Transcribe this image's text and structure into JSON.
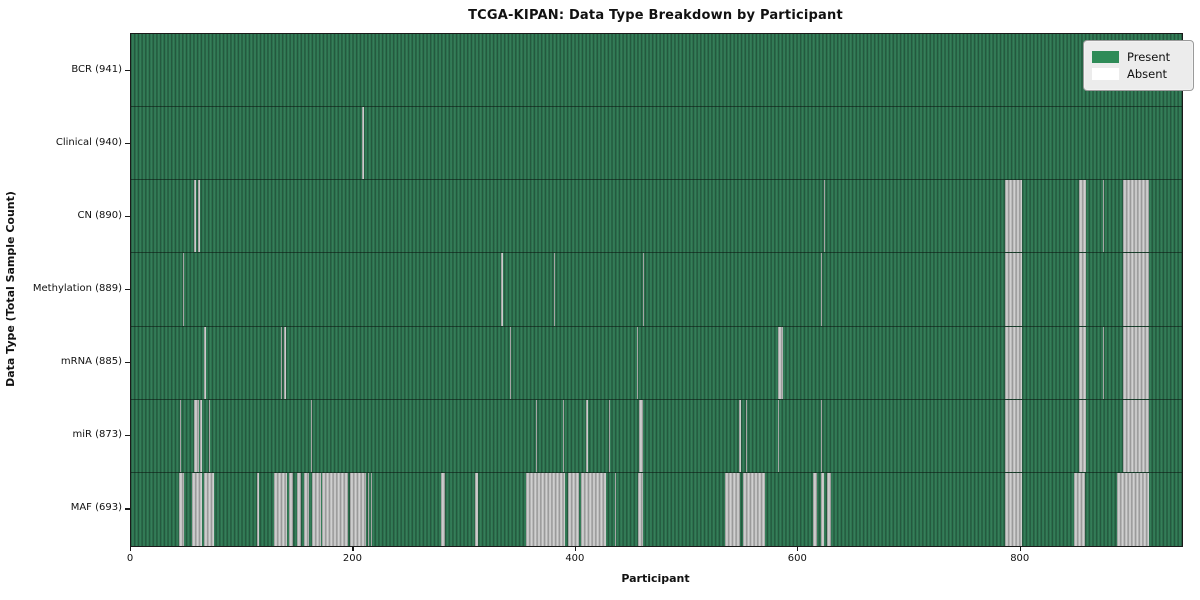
{
  "chart_data": {
    "type": "heatmap",
    "title": "TCGA-KIPAN: Data Type Breakdown by Participant",
    "xlabel": "Participant",
    "ylabel": "Data Type (Total Sample Count)",
    "x_ticks": [
      0,
      200,
      400,
      600,
      800
    ],
    "x_max": 945,
    "grid": false,
    "legend_position": "upper right",
    "colors": {
      "present_fill": "#2e8b57",
      "present_edge": "#224f38",
      "absent_fill": "#ffffff",
      "absent_edge": "#8e8e8e",
      "legend_bg": "#ececec",
      "axis": "#1a1a1a"
    },
    "legend": [
      {
        "label": "Present",
        "color": "#2e8b57"
      },
      {
        "label": "Absent",
        "color": "#ffffff"
      }
    ],
    "rows": [
      {
        "label": "BCR (941)",
        "data_type": "BCR",
        "total_samples": 941,
        "absent_ranges": []
      },
      {
        "label": "Clinical (940)",
        "data_type": "Clinical",
        "total_samples": 940,
        "absent_ranges": [
          [
            208,
            209
          ]
        ]
      },
      {
        "label": "CN (890)",
        "data_type": "CN",
        "total_samples": 890,
        "absent_ranges": [
          [
            57,
            58
          ],
          [
            60,
            62
          ],
          [
            623,
            624
          ],
          [
            786,
            801
          ],
          [
            852,
            859
          ],
          [
            874,
            875
          ],
          [
            892,
            915
          ]
        ]
      },
      {
        "label": "Methylation (889)",
        "data_type": "Methylation",
        "total_samples": 889,
        "absent_ranges": [
          [
            47,
            48
          ],
          [
            333,
            334
          ],
          [
            380,
            381
          ],
          [
            460,
            461
          ],
          [
            620,
            621
          ],
          [
            786,
            801
          ],
          [
            852,
            859
          ],
          [
            892,
            915
          ]
        ]
      },
      {
        "label": "mRNA (885)",
        "data_type": "mRNA",
        "total_samples": 885,
        "absent_ranges": [
          [
            66,
            67
          ],
          [
            135,
            136
          ],
          [
            138,
            139
          ],
          [
            341,
            342
          ],
          [
            455,
            456
          ],
          [
            582,
            586
          ],
          [
            786,
            801
          ],
          [
            852,
            859
          ],
          [
            874,
            875
          ],
          [
            892,
            915
          ]
        ]
      },
      {
        "label": "miR (873)",
        "data_type": "miR",
        "total_samples": 873,
        "absent_ranges": [
          [
            44,
            45
          ],
          [
            57,
            61
          ],
          [
            62,
            64
          ],
          [
            70,
            71
          ],
          [
            162,
            163
          ],
          [
            364,
            365
          ],
          [
            388,
            389
          ],
          [
            409,
            411
          ],
          [
            430,
            431
          ],
          [
            457,
            460
          ],
          [
            547,
            548
          ],
          [
            553,
            554
          ],
          [
            582,
            583
          ],
          [
            620,
            621
          ],
          [
            786,
            801
          ],
          [
            852,
            859
          ],
          [
            892,
            915
          ]
        ]
      },
      {
        "label": "MAF (693)",
        "data_type": "MAF",
        "total_samples": 693,
        "absent_ranges": [
          [
            43,
            48
          ],
          [
            55,
            64
          ],
          [
            66,
            75
          ],
          [
            113,
            115
          ],
          [
            129,
            140
          ],
          [
            142,
            146
          ],
          [
            149,
            153
          ],
          [
            156,
            160
          ],
          [
            163,
            171
          ],
          [
            172,
            195
          ],
          [
            197,
            211
          ],
          [
            213,
            214
          ],
          [
            216,
            217
          ],
          [
            279,
            282
          ],
          [
            309,
            312
          ],
          [
            355,
            390
          ],
          [
            393,
            403
          ],
          [
            405,
            427
          ],
          [
            435,
            436
          ],
          [
            456,
            460
          ],
          [
            534,
            548
          ],
          [
            550,
            570
          ],
          [
            613,
            617
          ],
          [
            620,
            623
          ],
          [
            626,
            629
          ],
          [
            786,
            801
          ],
          [
            848,
            858
          ],
          [
            887,
            915
          ]
        ]
      }
    ]
  }
}
